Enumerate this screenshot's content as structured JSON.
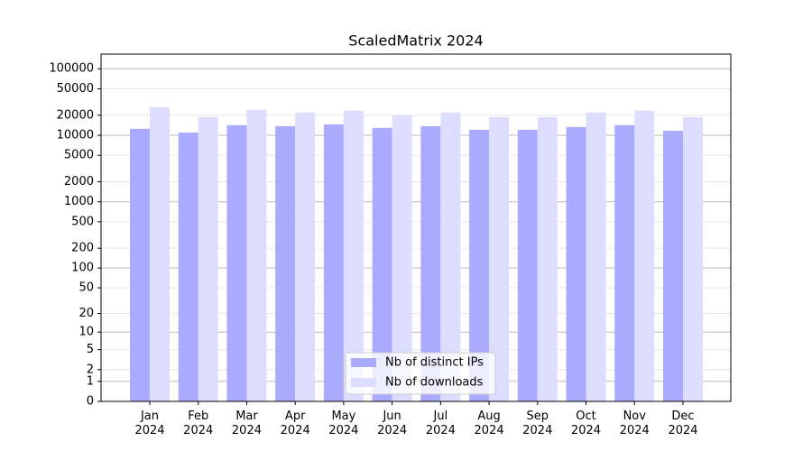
{
  "chart_data": {
    "type": "bar",
    "title": "ScaledMatrix 2024",
    "categories": [
      "Jan 2024",
      "Feb 2024",
      "Mar 2024",
      "Apr 2024",
      "May 2024",
      "Jun 2024",
      "Jul 2024",
      "Aug 2024",
      "Sep 2024",
      "Oct 2024",
      "Nov 2024",
      "Dec 2024"
    ],
    "series": [
      {
        "name": "Nb of distinct IPs",
        "color": "#aaaaff",
        "values": [
          12500,
          11000,
          14200,
          13700,
          14600,
          12900,
          13700,
          12100,
          12100,
          13300,
          14200,
          11700
        ]
      },
      {
        "name": "Nb of downloads",
        "color": "#ddddff",
        "values": [
          26500,
          18800,
          24100,
          22000,
          23400,
          20000,
          22000,
          18800,
          18800,
          22000,
          23400,
          18800
        ]
      }
    ],
    "yscale": "log1p",
    "ylim": [
      0,
      166000
    ],
    "yticks": [
      0,
      1,
      2,
      5,
      10,
      20,
      50,
      100,
      200,
      500,
      1000,
      2000,
      5000,
      10000,
      20000,
      50000,
      100000
    ],
    "grid": true,
    "legend": "lower center"
  }
}
